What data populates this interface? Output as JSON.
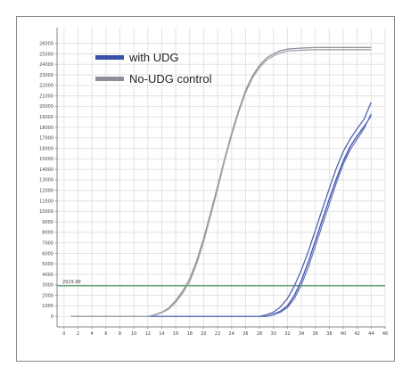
{
  "chart_data": {
    "type": "line",
    "title": "",
    "xlabel": "",
    "ylabel": "",
    "xlim": [
      -1,
      46
    ],
    "ylim": [
      -1000,
      27500
    ],
    "x_ticks": [
      0,
      2,
      4,
      6,
      8,
      10,
      12,
      14,
      16,
      18,
      20,
      22,
      24,
      26,
      28,
      30,
      32,
      34,
      36,
      38,
      40,
      42,
      44,
      46
    ],
    "y_ticks": [
      0,
      1000,
      2000,
      3000,
      4000,
      5000,
      6000,
      7000,
      8000,
      9000,
      10000,
      11000,
      12000,
      13000,
      14000,
      15000,
      16000,
      17000,
      18000,
      19000,
      20000,
      21000,
      22000,
      23000,
      24000,
      25000,
      26000
    ],
    "grid": true,
    "legend": "top-left",
    "threshold": {
      "value": 2919.99,
      "label": "2919.99",
      "color": "#5d9e6a"
    },
    "series": [
      {
        "name": "with UDG",
        "color": "#3a4fa8",
        "legend": true,
        "x": [
          1,
          29,
          30,
          31,
          32,
          33,
          34,
          35,
          36,
          37,
          38,
          39,
          40,
          41,
          42,
          43,
          44
        ],
        "y": [
          0,
          0,
          200,
          500,
          1000,
          2000,
          3400,
          5200,
          7200,
          9200,
          11200,
          13100,
          14800,
          16200,
          17200,
          18100,
          19100
        ]
      },
      {
        "name": "",
        "color": "#5262b3",
        "legend": false,
        "x": [
          1,
          28,
          29,
          30,
          31,
          32,
          33,
          34,
          35,
          36,
          37,
          38,
          39,
          40,
          41,
          42,
          43,
          44
        ],
        "y": [
          0,
          0,
          150,
          400,
          900,
          1700,
          2900,
          4400,
          6200,
          8200,
          10200,
          12200,
          14100,
          15700,
          16900,
          17900,
          18800,
          20400
        ]
      },
      {
        "name": "",
        "color": "#6a78bd",
        "legend": false,
        "x": [
          1,
          29,
          30,
          31,
          32,
          33,
          34,
          35,
          36,
          37,
          38,
          39,
          40,
          41,
          42,
          43,
          44
        ],
        "y": [
          0,
          0,
          150,
          400,
          850,
          1700,
          3000,
          4700,
          6700,
          8700,
          10700,
          12700,
          14500,
          15900,
          16900,
          17900,
          19300
        ]
      },
      {
        "name": "No-UDG control",
        "color": "#8c8f98",
        "legend": true,
        "x": [
          1,
          12,
          13,
          14,
          15,
          16,
          17,
          18,
          19,
          20,
          21,
          22,
          23,
          24,
          25,
          26,
          27,
          28,
          29,
          30,
          31,
          32,
          34,
          36,
          38,
          40,
          42,
          44
        ],
        "y": [
          0,
          0,
          150,
          400,
          800,
          1500,
          2400,
          3600,
          5300,
          7400,
          9900,
          12400,
          15000,
          17400,
          19600,
          21500,
          22900,
          23900,
          24600,
          25000,
          25300,
          25450,
          25550,
          25600,
          25600,
          25600,
          25600,
          25600
        ]
      },
      {
        "name": "",
        "color": "#a3a6ae",
        "legend": false,
        "x": [
          1,
          12,
          13,
          14,
          15,
          16,
          17,
          18,
          19,
          20,
          21,
          22,
          23,
          24,
          25,
          26,
          27,
          28,
          29,
          30,
          31,
          32,
          34,
          36,
          38,
          40,
          42,
          44
        ],
        "y": [
          0,
          0,
          120,
          350,
          700,
          1350,
          2200,
          3300,
          5000,
          7100,
          9600,
          12100,
          14800,
          17200,
          19400,
          21300,
          22700,
          23700,
          24400,
          24800,
          25100,
          25250,
          25350,
          25400,
          25400,
          25400,
          25400,
          25400
        ]
      }
    ]
  }
}
